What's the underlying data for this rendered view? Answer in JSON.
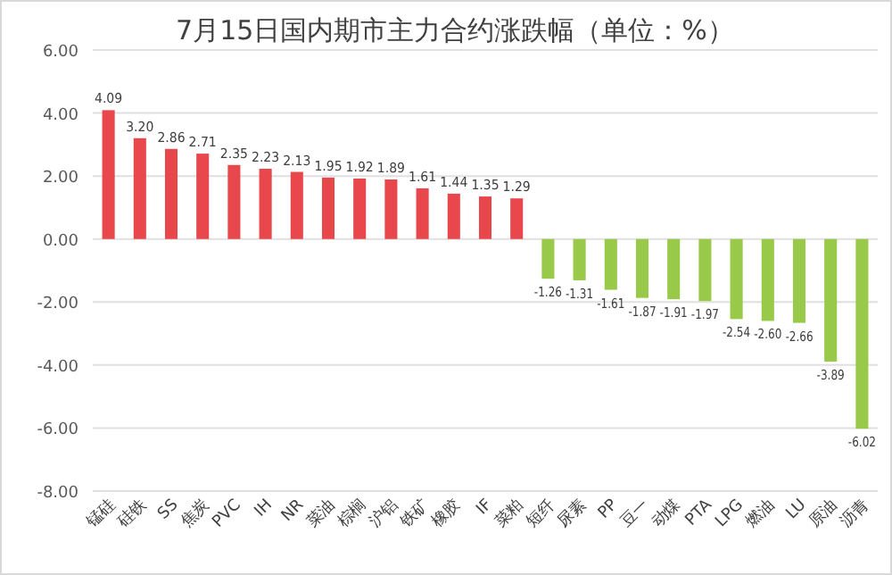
{
  "chart_data": {
    "type": "bar",
    "title": "7月15日国内期市主力合约涨跌幅（单位：%）",
    "categories": [
      "锰硅",
      "硅铁",
      "SS",
      "焦炭",
      "PVC",
      "IH",
      "NR",
      "菜油",
      "棕榈",
      "沪铝",
      "铁矿",
      "橡胶",
      "IF",
      "菜粕",
      "短纤",
      "尿素",
      "PP",
      "豆一",
      "动煤",
      "PTA",
      "LPG",
      "燃油",
      "LU",
      "原油",
      "沥青"
    ],
    "values": [
      4.09,
      3.2,
      2.86,
      2.71,
      2.35,
      2.23,
      2.13,
      1.95,
      1.92,
      1.89,
      1.61,
      1.44,
      1.35,
      1.29,
      -1.26,
      -1.31,
      -1.61,
      -1.87,
      -1.91,
      -1.97,
      -2.54,
      -2.6,
      -2.66,
      -3.89,
      -6.02
    ],
    "value_labels": [
      "4.09",
      "3.20",
      "2.86",
      "2.71",
      "2.35",
      "2.23",
      "2.13",
      "1.95",
      "1.92",
      "1.89",
      "1.61",
      "1.44",
      "1.35",
      "1.29",
      "-1.26",
      "-1.31",
      "-1.61",
      "-1.87",
      "-1.91",
      "-1.97",
      "-2.54",
      "-2.60",
      "-2.66",
      "-3.89",
      "-6.02"
    ],
    "colors": [
      "#e8474b",
      "#e8474b",
      "#e8474b",
      "#e8474b",
      "#e8474b",
      "#e8474b",
      "#e8474b",
      "#e8474b",
      "#e8474b",
      "#e8474b",
      "#e8474b",
      "#e8474b",
      "#e8474b",
      "#e8474b",
      "#99c948",
      "#99c948",
      "#99c948",
      "#99c948",
      "#99c948",
      "#99c948",
      "#99c948",
      "#99c948",
      "#99c948",
      "#99c948",
      "#99c948"
    ],
    "ylim": [
      -8,
      6
    ],
    "yticks": [
      {
        "value": -8,
        "label": "-8.00"
      },
      {
        "value": -6,
        "label": "-6.00"
      },
      {
        "value": -4,
        "label": "-4.00"
      },
      {
        "value": -2,
        "label": "-2.00"
      },
      {
        "value": 0,
        "label": "0.00"
      },
      {
        "value": 2,
        "label": "2.00"
      },
      {
        "value": 4,
        "label": "4.00"
      },
      {
        "value": 6,
        "label": "6.00"
      }
    ],
    "grid": "y"
  }
}
